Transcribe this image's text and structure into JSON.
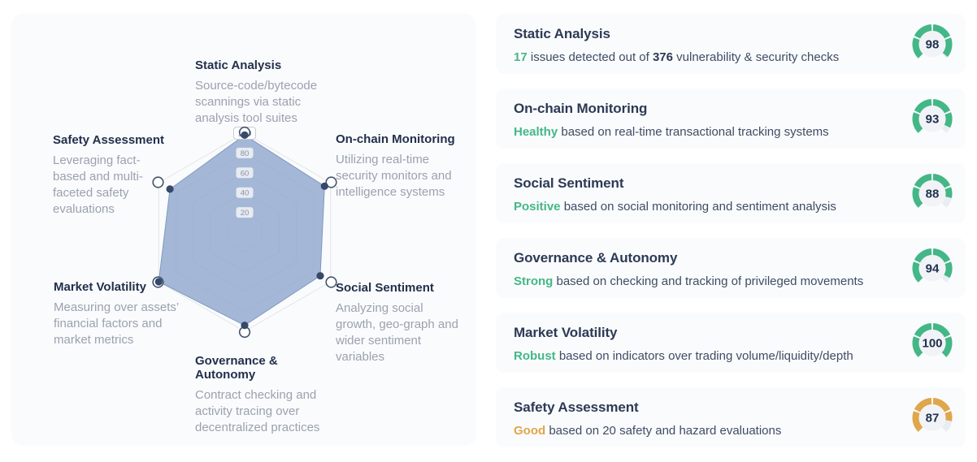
{
  "colors": {
    "green": "#44b787",
    "orange": "#dfa64b",
    "gauge_track": "#e9edf2",
    "gauge_inner": "#f1f3f7",
    "score_text": "#20304e",
    "radar_fill": "#8fa6cc",
    "radar_stroke": "#7f99c4",
    "ring_stroke": "#e3e6ea",
    "dot": "#36496b",
    "endpoint_stroke": "#42546f",
    "tick_text": "#8b94a3",
    "tick_pill": "#eef1f5",
    "max_tick_text": "#626e80",
    "max_tick_border": "#c7cdd6"
  },
  "chart_data": [
    {
      "type": "radar",
      "title": "",
      "max": 100,
      "rings": [
        20,
        40,
        60,
        80,
        100
      ],
      "categories": [
        "Static Analysis",
        "On-chain Monitoring",
        "Social Sentiment",
        "Governance & Autonomy",
        "Market Volatility",
        "Safety Assessment"
      ],
      "values": [
        98,
        93,
        88,
        94,
        100,
        87
      ],
      "axes": [
        {
          "label": "Static Analysis",
          "description": "Source-code/bytecode scannings via static analysis tool suites",
          "value": 98
        },
        {
          "label": "On-chain Monitoring",
          "description": "Utilizing real-time security monitors and intelligence systems",
          "value": 93
        },
        {
          "label": "Social Sentiment",
          "description": "Analyzing social growth, geo-graph and wider sentiment variables",
          "value": 88
        },
        {
          "label": "Governance & Autonomy",
          "description": "Contract checking and activity tracing over decentralized practices",
          "value": 94
        },
        {
          "label": "Market Volatility",
          "description": "Measuring over assets’ financial factors and market metrics",
          "value": 100
        },
        {
          "label": "Safety Assessment",
          "description": "Leveraging fact-based and multi-faceted safety evaluations",
          "value": 87
        }
      ]
    },
    {
      "type": "gauge-list",
      "items": [
        {
          "label": "Static Analysis",
          "score": 98,
          "color": "green"
        },
        {
          "label": "On-chain Monitoring",
          "score": 93,
          "color": "green"
        },
        {
          "label": "Social Sentiment",
          "score": 88,
          "color": "green"
        },
        {
          "label": "Governance & Autonomy",
          "score": 94,
          "color": "green"
        },
        {
          "label": "Market Volatility",
          "score": 100,
          "color": "green"
        },
        {
          "label": "Safety Assessment",
          "score": 87,
          "color": "orange"
        }
      ]
    }
  ],
  "cards": [
    {
      "title": "Static Analysis",
      "score": 98,
      "color": "green",
      "segments": [
        {
          "text": "17",
          "style": "accent"
        },
        {
          "text": " issues detected out of ",
          "style": "normal"
        },
        {
          "text": "376",
          "style": "bold"
        },
        {
          "text": " vulnerability & security checks",
          "style": "normal"
        }
      ]
    },
    {
      "title": "On-chain Monitoring",
      "score": 93,
      "color": "green",
      "segments": [
        {
          "text": "Healthy",
          "style": "accent"
        },
        {
          "text": " based on real-time transactional tracking systems",
          "style": "normal"
        }
      ]
    },
    {
      "title": "Social Sentiment",
      "score": 88,
      "color": "green",
      "segments": [
        {
          "text": "Positive",
          "style": "accent"
        },
        {
          "text": " based on social monitoring and sentiment analysis",
          "style": "normal"
        }
      ]
    },
    {
      "title": "Governance & Autonomy",
      "score": 94,
      "color": "green",
      "segments": [
        {
          "text": "Strong",
          "style": "accent"
        },
        {
          "text": " based on checking and tracking of privileged movements",
          "style": "normal"
        }
      ]
    },
    {
      "title": "Market Volatility",
      "score": 100,
      "color": "green",
      "segments": [
        {
          "text": "Robust",
          "style": "accent"
        },
        {
          "text": " based on indicators over trading volume/liquidity/depth",
          "style": "normal"
        }
      ]
    },
    {
      "title": "Safety Assessment",
      "score": 87,
      "color": "orange",
      "segments": [
        {
          "text": "Good",
          "style": "accent"
        },
        {
          "text": " based on 20 safety and hazard evaluations",
          "style": "normal"
        }
      ]
    }
  ]
}
